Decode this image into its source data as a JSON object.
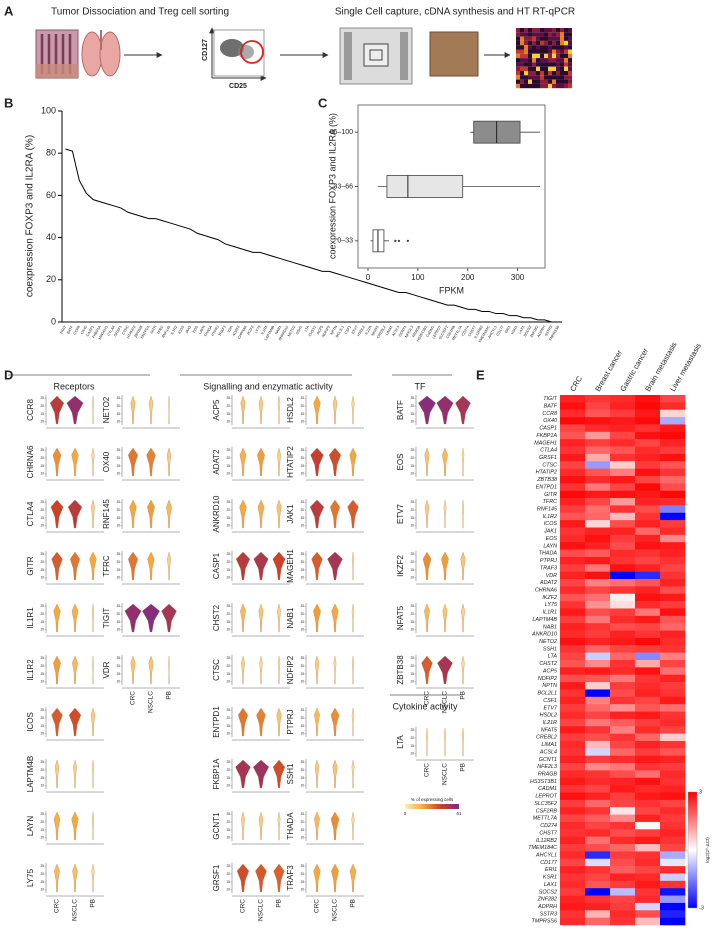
{
  "panel_labels": [
    "A",
    "B",
    "C",
    "D",
    "E"
  ],
  "panel_a": {
    "left_title": "Tumor Dissociation and Treg cell sorting",
    "right_title": "Single Cell capture, cDNA synthesis and HT RT-qPCR",
    "facs_y_label": "CD127",
    "facs_x_label": "CD25"
  },
  "chart_data": [
    {
      "type": "line",
      "ylabel": "coexpression FOXP3 and IL2RA (%)",
      "color": "#000000",
      "ylim": [
        0,
        100
      ],
      "yticks": [
        0,
        20,
        40,
        60,
        80,
        100
      ],
      "categories": [
        "TIGIT",
        "BATF",
        "CCR8",
        "OX40",
        "CASP1",
        "FKBP1A",
        "MAGEH1",
        "CTLA4",
        "GRSF1",
        "CTSC",
        "HTATIP2",
        "ZBTB38",
        "ENTPD1",
        "GITR",
        "TFRC",
        "RNF145",
        "IL1R2",
        "ICOS",
        "JAK1",
        "EOS",
        "LAYN",
        "THADA",
        "PTPRJ",
        "TRAF3",
        "VDR",
        "ADAT2",
        "CHRNA6",
        "IKZF2",
        "LY75",
        "IL1R1",
        "LAPTM4B",
        "NAB1",
        "ANKRD10",
        "NETO2",
        "SSH1",
        "LTA",
        "CHST2",
        "ACP5",
        "NDFIP2",
        "NPTN",
        "BCL2L1",
        "CSF1",
        "ETV7",
        "HSDL2",
        "IL21R",
        "NFAT5",
        "CREBL2",
        "LIMA1",
        "ACSL4",
        "GCNT1",
        "NFE2L3",
        "RRAGB",
        "HS3ST3B1",
        "CADM1",
        "LEPROT",
        "SLC35F2",
        "CSF2RB",
        "METTL7A",
        "CD274",
        "CHST7",
        "IL12RB2",
        "TMEM184C",
        "AHCYL1",
        "CD177",
        "ERI1",
        "KSR1",
        "LAX1",
        "SOCS2",
        "ZNF282",
        "ADPRH",
        "SSTR3",
        "TMPRSS6"
      ],
      "values": [
        82,
        81,
        67,
        61,
        58,
        57,
        56,
        55,
        54,
        52,
        51,
        50,
        49,
        49,
        48,
        47,
        46,
        45,
        44,
        42,
        41,
        40,
        39,
        37,
        36,
        35,
        34,
        33,
        33,
        32,
        31,
        30,
        29,
        28,
        27,
        26,
        25,
        24,
        24,
        23,
        22,
        21,
        20,
        19,
        18,
        17,
        16,
        15,
        14,
        14,
        13,
        12,
        11,
        10,
        9,
        8,
        8,
        7,
        6,
        6,
        5,
        5,
        4,
        4,
        3,
        3,
        2,
        2,
        1,
        1,
        0,
        0
      ]
    },
    {
      "type": "box",
      "ylabel": "coexpression FOXP3 and IL2RA (%)",
      "xlabel": "FPKM",
      "xlim": [
        -20,
        355
      ],
      "xticks": [
        0,
        100,
        200,
        300
      ],
      "categories": [
        "0–33",
        "33–66",
        "66–100"
      ],
      "colors": [
        "#ffffff",
        "#e6e6e6",
        "#8c8c8c"
      ],
      "boxes": [
        {
          "whislo": 5,
          "q1": 10,
          "med": 20,
          "q3": 32,
          "whishi": 42,
          "fliers": [
            55,
            62,
            80
          ]
        },
        {
          "whislo": 20,
          "q1": 38,
          "med": 80,
          "q3": 190,
          "whishi": 345,
          "fliers": []
        },
        {
          "whislo": 205,
          "q1": 212,
          "med": 258,
          "q3": 305,
          "whishi": 345,
          "fliers": []
        }
      ]
    },
    {
      "type": "violin",
      "categories": [
        "CRC",
        "NSCLC",
        "PB"
      ],
      "ylim": [
        8,
        27
      ],
      "yticks": [
        10,
        15,
        20,
        25
      ],
      "colorbar_title": "% of expressing cells",
      "clim": [
        0,
        61
      ],
      "colormap": [
        "#fdeec0",
        "#f3a83b",
        "#c8402a",
        "#7b2a8a"
      ],
      "groups": [
        {
          "title": "Receptors",
          "genes": [
            {
              "name": "CCR8",
              "values": [
                45,
                55,
                0
              ]
            },
            {
              "name": "CHRNA6",
              "values": [
                25,
                20,
                5
              ]
            },
            {
              "name": "CTLA4",
              "values": [
                40,
                45,
                8
              ]
            },
            {
              "name": "GITR",
              "values": [
                35,
                30,
                20
              ]
            },
            {
              "name": "IL1R1",
              "values": [
                20,
                18,
                2
              ]
            },
            {
              "name": "IL1R2",
              "values": [
                22,
                15,
                0
              ]
            },
            {
              "name": "ICOS",
              "values": [
                35,
                38,
                10
              ]
            },
            {
              "name": "LAPTM4B",
              "values": [
                10,
                8,
                2
              ]
            },
            {
              "name": "LAYN",
              "values": [
                18,
                20,
                2
              ]
            },
            {
              "name": "LY75",
              "values": [
                15,
                14,
                5
              ]
            },
            {
              "name": "NETO2",
              "values": [
                12,
                10,
                0
              ]
            },
            {
              "name": "OX40",
              "values": [
                30,
                28,
                10
              ]
            },
            {
              "name": "RNF145",
              "values": [
                20,
                22,
                15
              ]
            },
            {
              "name": "TFRC",
              "values": [
                30,
                20,
                8
              ]
            },
            {
              "name": "TIGIT",
              "values": [
                55,
                58,
                50
              ]
            },
            {
              "name": "VDR",
              "values": [
                12,
                12,
                0
              ]
            }
          ]
        },
        {
          "title": "Signalling and enzymatic activity",
          "genes": [
            {
              "name": "ACP5",
              "values": [
                12,
                10,
                3
              ]
            },
            {
              "name": "ADAT2",
              "values": [
                18,
                22,
                8
              ]
            },
            {
              "name": "ANKRD10",
              "values": [
                20,
                18,
                12
              ]
            },
            {
              "name": "CASP1",
              "values": [
                45,
                48,
                40
              ]
            },
            {
              "name": "CHST2",
              "values": [
                15,
                12,
                8
              ]
            },
            {
              "name": "CTSC",
              "values": [
                8,
                6,
                3
              ]
            },
            {
              "name": "ENTPD1",
              "values": [
                30,
                28,
                12
              ]
            },
            {
              "name": "FKBP1A",
              "values": [
                50,
                52,
                38
              ]
            },
            {
              "name": "GCNT1",
              "values": [
                8,
                10,
                4
              ]
            },
            {
              "name": "GRSF1",
              "values": [
                38,
                36,
                34
              ]
            },
            {
              "name": "HSDL2",
              "values": [
                20,
                10,
                5
              ]
            },
            {
              "name": "HTATIP2",
              "values": [
                42,
                38,
                20
              ]
            },
            {
              "name": "JAK1",
              "values": [
                45,
                30,
                35
              ]
            },
            {
              "name": "MAGEH1",
              "values": [
                35,
                50,
                2
              ]
            },
            {
              "name": "NAB1",
              "values": [
                22,
                20,
                3
              ]
            },
            {
              "name": "NDFIP2",
              "values": [
                10,
                4,
                2
              ]
            },
            {
              "name": "PTPRJ",
              "values": [
                15,
                25,
                3
              ]
            },
            {
              "name": "SSH1",
              "values": [
                10,
                12,
                4
              ]
            },
            {
              "name": "THADA",
              "values": [
                15,
                25,
                5
              ]
            },
            {
              "name": "TRAF3",
              "values": [
                20,
                22,
                18
              ]
            }
          ]
        },
        {
          "title": "TF",
          "genes": [
            {
              "name": "BATF",
              "values": [
                58,
                55,
                50
              ]
            },
            {
              "name": "EOS",
              "values": [
                12,
                15,
                3
              ]
            },
            {
              "name": "ETV7",
              "values": [
                10,
                4,
                2
              ]
            },
            {
              "name": "IKZF2",
              "values": [
                25,
                22,
                12
              ]
            },
            {
              "name": "NFAT5",
              "values": [
                15,
                12,
                8
              ]
            },
            {
              "name": "ZBTB38",
              "values": [
                35,
                50,
                6
              ]
            }
          ]
        },
        {
          "title": "Cytokine activity",
          "genes": [
            {
              "name": "LTA",
              "values": [
                2,
                2,
                2
              ]
            }
          ]
        }
      ]
    },
    {
      "type": "heatmap",
      "zlabel": "log2(2^-ΔCt)",
      "zlim": [
        -3,
        3
      ],
      "zticks": [
        3,
        -3
      ],
      "colormap": [
        "#0000ff",
        "#ffffff",
        "#ff0000"
      ],
      "columns": [
        "CRC",
        "Breast cancer",
        "Gastric cancer",
        "Brain metastasis",
        "Liver metastasis"
      ],
      "rows": [
        "TIGIT",
        "BATF",
        "CCR8",
        "OX40",
        "CASP1",
        "FKBP1A",
        "MAGEH1",
        "CTLA4",
        "GRSF1",
        "CTSC",
        "HTATIP2",
        "ZBTB38",
        "ENTPD1",
        "GITR",
        "TFRC",
        "RNF145",
        "IL1R2",
        "ICOS",
        "JAK1",
        "EOS",
        "LAYN",
        "THADA",
        "PTPRJ",
        "TRAF3",
        "VDR",
        "ADAT2",
        "CHRNA6",
        "IKZF2",
        "LY75",
        "IL1R1",
        "LAPTM4B",
        "NAB1",
        "ANKRD10",
        "NETO2",
        "SSH1",
        "LTA",
        "CHST2",
        "ACP5",
        "NDFIP2",
        "NPTN",
        "BCL2L1",
        "CSF1",
        "ETV7",
        "HSDL2",
        "IL21R",
        "NFAT5",
        "CREBL2",
        "LIMA1",
        "ACSL4",
        "GCNT1",
        "NFE2L3",
        "RRAGB",
        "HS3ST3B1",
        "CADM1",
        "LEPROT",
        "SLC35F2",
        "CSF2RB",
        "METTL7A",
        "CD274",
        "CHST7",
        "IL12RB2",
        "TMEM184C",
        "AHCYL1",
        "CD177",
        "ERI1",
        "KSR1",
        "LAX1",
        "SOCS2",
        "ZNF282",
        "ADPRH",
        "SSTR3",
        "TMPRSS6"
      ],
      "values": [
        [
          2.6,
          2.4,
          2.5,
          2.8,
          2.2
        ],
        [
          2.8,
          2.2,
          2.6,
          2.9,
          2.5
        ],
        [
          2.5,
          2.0,
          2.3,
          2.7,
          0.5
        ],
        [
          2.9,
          2.8,
          2.7,
          2.9,
          -1.0
        ],
        [
          2.2,
          2.5,
          2.6,
          2.4,
          2.7
        ],
        [
          2.0,
          1.2,
          2.2,
          2.8,
          2.9
        ],
        [
          2.6,
          2.3,
          2.5,
          2.2,
          2.6
        ],
        [
          2.4,
          1.8,
          2.0,
          2.5,
          2.3
        ],
        [
          2.7,
          1.0,
          2.4,
          2.6,
          2.8
        ],
        [
          2.2,
          -1.2,
          0.6,
          2.3,
          2.0
        ],
        [
          2.5,
          2.0,
          1.5,
          2.8,
          2.4
        ],
        [
          2.8,
          2.5,
          2.7,
          2.2,
          1.8
        ],
        [
          2.4,
          1.6,
          2.2,
          2.9,
          2.1
        ],
        [
          2.9,
          2.7,
          2.8,
          2.7,
          2.9
        ],
        [
          2.6,
          2.2,
          1.2,
          2.6,
          2.5
        ],
        [
          2.3,
          1.7,
          2.4,
          2.1,
          -1.5
        ],
        [
          2.0,
          1.8,
          0.8,
          2.4,
          -3.0
        ],
        [
          2.7,
          0.5,
          2.1,
          2.6,
          2.3
        ],
        [
          2.4,
          2.6,
          2.6,
          1.8,
          2.5
        ],
        [
          2.5,
          2.8,
          2.3,
          2.6,
          1.4
        ],
        [
          2.8,
          2.6,
          2.1,
          2.8,
          2.7
        ],
        [
          2.1,
          1.9,
          2.5,
          2.4,
          2.6
        ],
        [
          2.6,
          2.7,
          2.4,
          2.2,
          2.4
        ],
        [
          2.3,
          1.6,
          2.8,
          2.6,
          2.2
        ],
        [
          2.6,
          2.8,
          -3.0,
          -2.5,
          2.4
        ],
        [
          2.2,
          1.5,
          1.7,
          2.0,
          2.6
        ],
        [
          2.5,
          2.2,
          2.4,
          2.6,
          2.1
        ],
        [
          2.0,
          1.7,
          0.2,
          2.8,
          2.7
        ],
        [
          2.4,
          1.3,
          0.4,
          2.5,
          2.3
        ],
        [
          2.7,
          2.1,
          2.3,
          1.6,
          2.8
        ],
        [
          2.3,
          1.6,
          2.5,
          2.7,
          2.0
        ],
        [
          2.6,
          2.4,
          2.1,
          2.2,
          1.8
        ],
        [
          2.5,
          2.3,
          2.6,
          2.4,
          2.6
        ],
        [
          2.8,
          2.6,
          2.7,
          2.9,
          2.5
        ],
        [
          2.4,
          1.8,
          2.2,
          2.3,
          2.4
        ],
        [
          2.2,
          -0.6,
          1.8,
          -1.4,
          1.5
        ],
        [
          2.0,
          1.4,
          2.4,
          1.0,
          2.2
        ],
        [
          2.6,
          2.7,
          2.5,
          2.8,
          1.7
        ],
        [
          2.1,
          2.0,
          1.6,
          2.4,
          2.6
        ],
        [
          2.7,
          0.6,
          2.3,
          2.5,
          2.3
        ],
        [
          2.4,
          -3.0,
          2.1,
          2.6,
          2.4
        ],
        [
          2.6,
          1.5,
          2.4,
          2.2,
          2.7
        ],
        [
          2.3,
          1.8,
          1.3,
          2.0,
          1.7
        ],
        [
          2.5,
          2.2,
          2.6,
          2.7,
          2.4
        ],
        [
          2.2,
          1.6,
          1.9,
          2.3,
          2.5
        ],
        [
          2.7,
          2.4,
          1.5,
          2.5,
          2.2
        ],
        [
          2.3,
          2.1,
          2.4,
          1.8,
          0.6
        ],
        [
          2.5,
          0.8,
          2.2,
          2.6,
          2.4
        ],
        [
          2.4,
          -0.5,
          1.8,
          2.3,
          2.0
        ],
        [
          2.6,
          2.3,
          2.5,
          2.7,
          2.6
        ],
        [
          2.2,
          1.4,
          1.6,
          2.4,
          2.3
        ],
        [
          2.5,
          2.4,
          2.1,
          1.7,
          2.5
        ],
        [
          2.7,
          2.5,
          2.6,
          2.8,
          2.4
        ],
        [
          2.4,
          2.2,
          2.7,
          2.5,
          2.6
        ],
        [
          2.8,
          2.6,
          2.3,
          2.7,
          2.8
        ],
        [
          2.3,
          1.8,
          2.2,
          2.4,
          2.2
        ],
        [
          2.6,
          2.4,
          0.3,
          2.2,
          2.5
        ],
        [
          2.2,
          1.9,
          1.4,
          2.6,
          2.3
        ],
        [
          2.5,
          2.2,
          2.4,
          0.1,
          2.4
        ],
        [
          2.4,
          2.5,
          2.1,
          2.3,
          2.6
        ],
        [
          2.6,
          1.7,
          2.5,
          2.7,
          2.4
        ],
        [
          2.3,
          2.1,
          1.8,
          0.8,
          2.2
        ],
        [
          2.5,
          -2.5,
          2.3,
          2.4,
          -1.0
        ],
        [
          2.2,
          -0.4,
          2.1,
          2.5,
          -0.3
        ],
        [
          2.6,
          2.4,
          1.9,
          2.2,
          2.5
        ],
        [
          2.4,
          2.2,
          2.6,
          2.5,
          -0.6
        ],
        [
          2.5,
          2.0,
          2.3,
          2.7,
          2.4
        ],
        [
          2.3,
          -3.0,
          -0.8,
          2.4,
          -2.8
        ],
        [
          2.6,
          2.4,
          2.2,
          2.5,
          -1.2
        ],
        [
          2.7,
          2.6,
          2.3,
          -0.5,
          -3.0
        ],
        [
          2.4,
          0.9,
          2.5,
          2.1,
          -2.6
        ],
        [
          2.5,
          1.8,
          2.4,
          0.8,
          -3.0
        ]
      ]
    }
  ]
}
